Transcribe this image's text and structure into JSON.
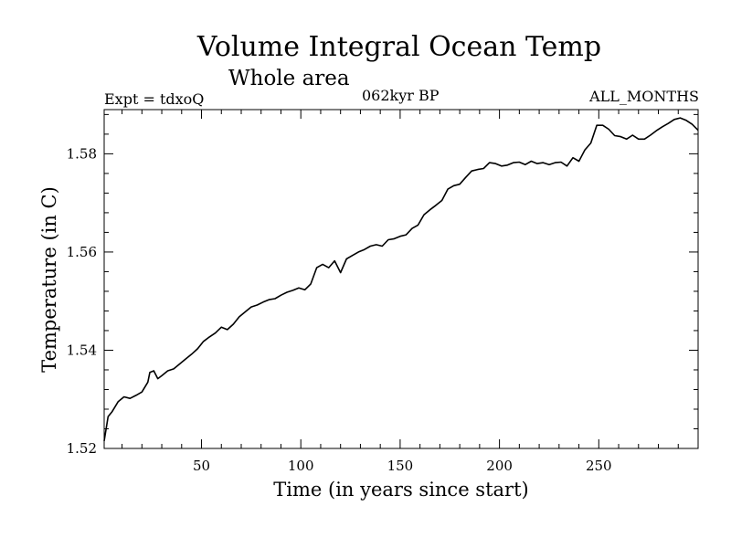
{
  "chart_data": {
    "type": "line",
    "title": "Volume Integral Ocean Temp",
    "subtitle": "Whole area",
    "annotations": {
      "experiment": "Expt = tdxoQ",
      "period": "062kyr BP",
      "months": "ALL_MONTHS"
    },
    "xlabel": "Time (in years since start)",
    "ylabel": "Temperature (in C)",
    "xlim": [
      1,
      300
    ],
    "ylim": [
      1.52,
      1.589
    ],
    "x_ticks": [
      50,
      100,
      150,
      200,
      250
    ],
    "x_tick_labels": [
      "50",
      "100",
      "150",
      "200",
      "250"
    ],
    "y_ticks": [
      1.52,
      1.54,
      1.56,
      1.58
    ],
    "y_tick_labels": [
      "1.52",
      "1.54",
      "1.56",
      "1.58"
    ],
    "grid": false,
    "series": [
      {
        "x": [
          1,
          3,
          5,
          8,
          11,
          14,
          17,
          20,
          23,
          24,
          26,
          28,
          30,
          33,
          36,
          39,
          42,
          45,
          48,
          51,
          54,
          57,
          60,
          63,
          66,
          69,
          72,
          75,
          78,
          81,
          84,
          87,
          90,
          93,
          96,
          99,
          102,
          105,
          108,
          111,
          114,
          117,
          120,
          123,
          126,
          129,
          132,
          135,
          138,
          141,
          144,
          147,
          150,
          153,
          156,
          159,
          162,
          165,
          168,
          171,
          174,
          177,
          180,
          183,
          186,
          189,
          192,
          195,
          198,
          201,
          204,
          207,
          210,
          213,
          216,
          219,
          222,
          225,
          228,
          231,
          234,
          237,
          240,
          243,
          246,
          249,
          252,
          255,
          258,
          261,
          264,
          267,
          270,
          273,
          276,
          279,
          282,
          285,
          288,
          291,
          294,
          297,
          300
        ],
        "y": [
          1.5215,
          1.5265,
          1.5275,
          1.5295,
          1.5305,
          1.5302,
          1.5308,
          1.5315,
          1.5335,
          1.5355,
          1.5358,
          1.5342,
          1.5348,
          1.5358,
          1.5362,
          1.5372,
          1.5382,
          1.5392,
          1.5403,
          1.5418,
          1.5427,
          1.5435,
          1.5447,
          1.5442,
          1.5453,
          1.5468,
          1.5478,
          1.5488,
          1.5492,
          1.5498,
          1.5503,
          1.5505,
          1.5512,
          1.5518,
          1.5522,
          1.5527,
          1.5523,
          1.5535,
          1.5568,
          1.5575,
          1.5568,
          1.5582,
          1.5558,
          1.5586,
          1.5593,
          1.56,
          1.5605,
          1.5612,
          1.5615,
          1.5612,
          1.5625,
          1.5627,
          1.5632,
          1.5635,
          1.5648,
          1.5655,
          1.5676,
          1.5686,
          1.5695,
          1.5705,
          1.5728,
          1.5735,
          1.5738,
          1.5752,
          1.5765,
          1.5768,
          1.577,
          1.5782,
          1.578,
          1.5775,
          1.5777,
          1.5782,
          1.5783,
          1.5778,
          1.5785,
          1.578,
          1.5782,
          1.5778,
          1.5782,
          1.5783,
          1.5775,
          1.5792,
          1.5785,
          1.5808,
          1.5822,
          1.5858,
          1.5858,
          1.585,
          1.5837,
          1.5835,
          1.583,
          1.5838,
          1.583,
          1.583,
          1.5838,
          1.5847,
          1.5855,
          1.5862,
          1.587,
          1.5873,
          1.5868,
          1.586,
          1.5848
        ]
      }
    ]
  }
}
